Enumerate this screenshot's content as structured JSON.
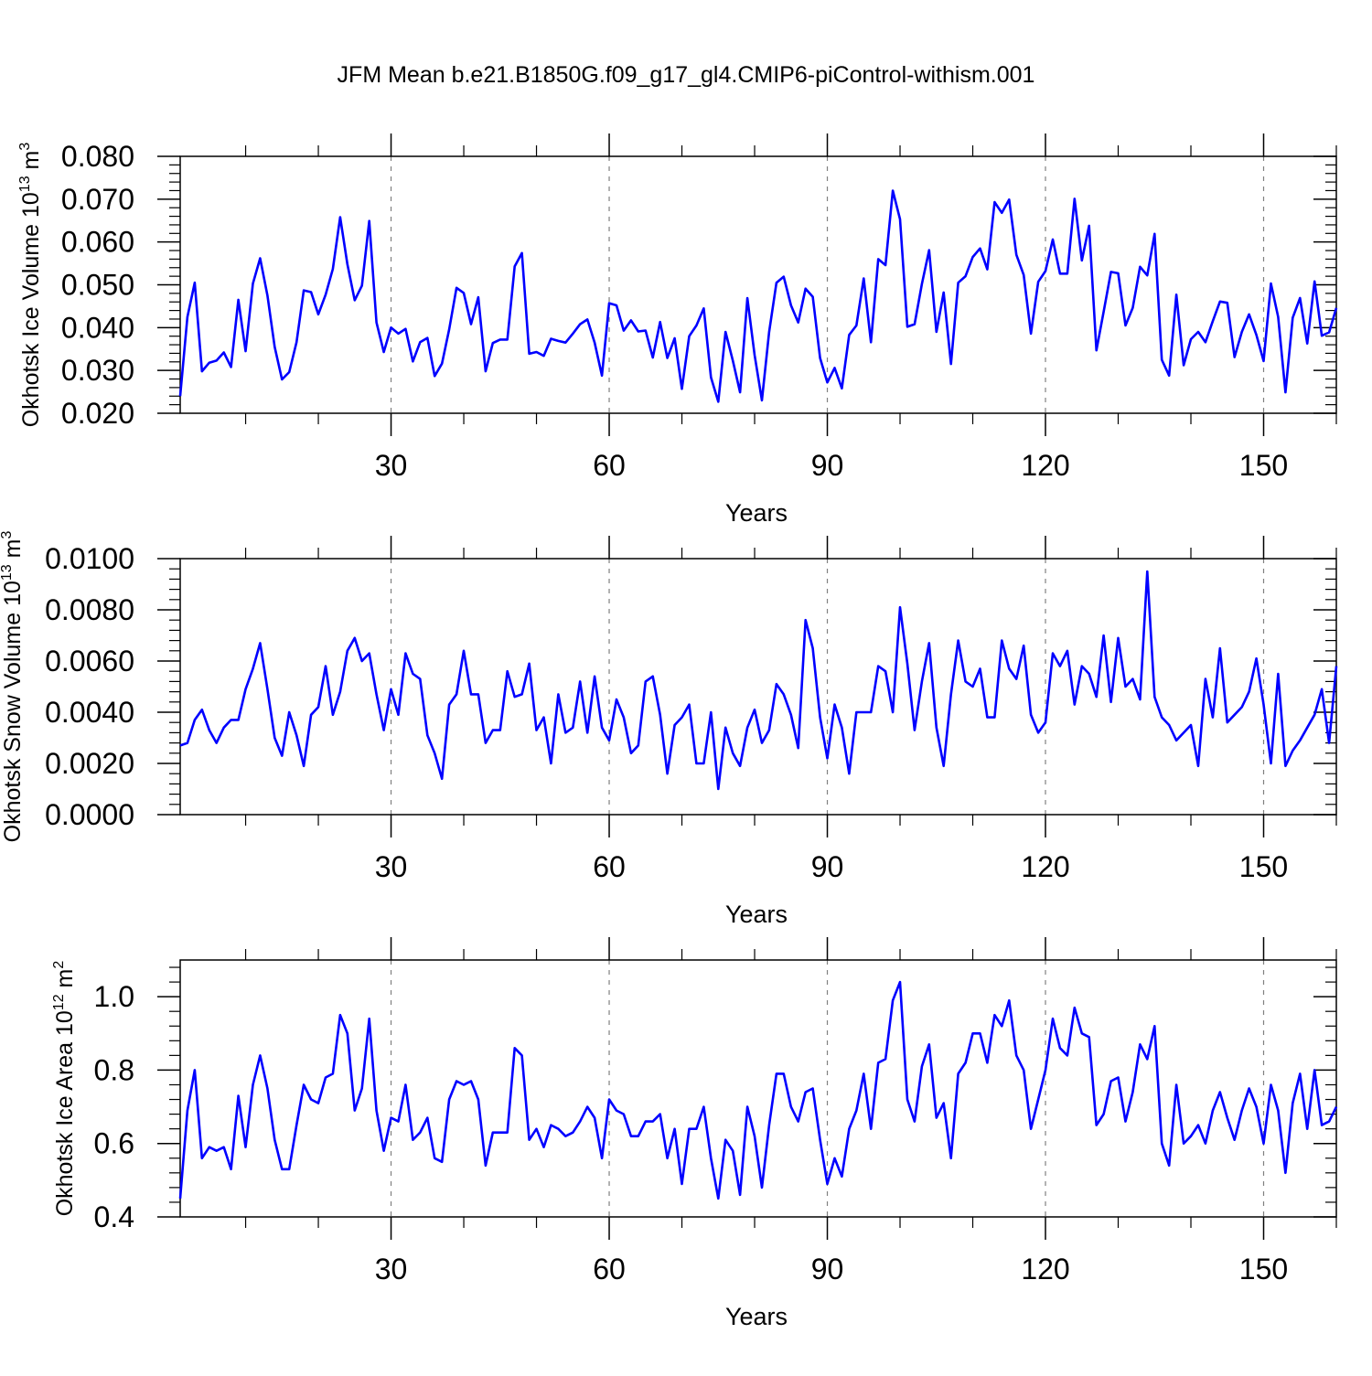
{
  "title": "JFM Mean b.e21.B1850G.f09_g17_gl4.CMIP6-piControl-withism.001",
  "line_color": "#0000ff",
  "grid_color": "#808080",
  "chart_data": [
    {
      "type": "line",
      "title": "",
      "xlabel": "Years",
      "ylabel": "Okhotsk Ice Volume 10",
      "ylabel_exp": "13",
      "ylabel_unit": "m",
      "ylabel_unit_exp": "3",
      "xlim": [
        1,
        160
      ],
      "ylim": [
        0.02,
        0.08
      ],
      "xticks": [
        30,
        60,
        90,
        120,
        150
      ],
      "xtick_labels": [
        "30",
        "60",
        "90",
        "120",
        "150"
      ],
      "yticks": [
        0.02,
        0.03,
        0.04,
        0.05,
        0.06,
        0.07,
        0.08
      ],
      "ytick_labels": [
        "0.020",
        "0.030",
        "0.040",
        "0.050",
        "0.060",
        "0.070",
        "0.080"
      ],
      "grid": "vertical dashed at x ticks",
      "series": [
        {
          "values": [
            0.024,
            0.0425,
            0.0505,
            0.0298,
            0.0318,
            0.0323,
            0.0342,
            0.0308,
            0.0465,
            0.0345,
            0.0503,
            0.0562,
            0.0475,
            0.0355,
            0.0279,
            0.0296,
            0.0366,
            0.0487,
            0.0483,
            0.0431,
            0.0477,
            0.0537,
            0.0658,
            0.0548,
            0.0464,
            0.0498,
            0.0649,
            0.0412,
            0.0343,
            0.04,
            0.0386,
            0.0397,
            0.0321,
            0.0366,
            0.0376,
            0.0287,
            0.0316,
            0.0396,
            0.0493,
            0.0481,
            0.0408,
            0.0471,
            0.0298,
            0.0364,
            0.0372,
            0.0372,
            0.0543,
            0.0574,
            0.0339,
            0.0343,
            0.0334,
            0.0374,
            0.0369,
            0.0365,
            0.0386,
            0.0408,
            0.0419,
            0.0365,
            0.0288,
            0.0457,
            0.0452,
            0.0393,
            0.0417,
            0.0391,
            0.0393,
            0.033,
            0.0413,
            0.0329,
            0.0375,
            0.0257,
            0.038,
            0.0405,
            0.0445,
            0.0284,
            0.0227,
            0.039,
            0.0323,
            0.0249,
            0.0469,
            0.0336,
            0.023,
            0.039,
            0.0505,
            0.0519,
            0.0452,
            0.0412,
            0.0491,
            0.0472,
            0.0329,
            0.0272,
            0.0306,
            0.0258,
            0.0383,
            0.0405,
            0.0515,
            0.0366,
            0.056,
            0.0546,
            0.072,
            0.0653,
            0.0402,
            0.0408,
            0.0502,
            0.0581,
            0.039,
            0.0482,
            0.0315,
            0.0505,
            0.052,
            0.0565,
            0.0585,
            0.0536,
            0.0693,
            0.0668,
            0.0699,
            0.057,
            0.0523,
            0.0386,
            0.0507,
            0.0532,
            0.0606,
            0.0526,
            0.0526,
            0.0701,
            0.0557,
            0.0638,
            0.0347,
            0.0437,
            0.053,
            0.0527,
            0.0405,
            0.0446,
            0.0542,
            0.0522,
            0.0619,
            0.0325,
            0.0288,
            0.0477,
            0.0312,
            0.0373,
            0.039,
            0.0366,
            0.0415,
            0.0461,
            0.0458,
            0.0331,
            0.039,
            0.0431,
            0.0383,
            0.0322,
            0.0503,
            0.0425,
            0.0249,
            0.0423,
            0.0469,
            0.0363,
            0.0508,
            0.0381,
            0.0389,
            0.0446
          ]
        }
      ]
    },
    {
      "type": "line",
      "title": "",
      "xlabel": "Years",
      "ylabel": "Okhotsk Snow Volume 10",
      "ylabel_exp": "13",
      "ylabel_unit": "m",
      "ylabel_unit_exp": "3",
      "xlim": [
        1,
        160
      ],
      "ylim": [
        0.0,
        0.01
      ],
      "xticks": [
        30,
        60,
        90,
        120,
        150
      ],
      "xtick_labels": [
        "30",
        "60",
        "90",
        "120",
        "150"
      ],
      "yticks": [
        0.0,
        0.002,
        0.004,
        0.006,
        0.008,
        0.01
      ],
      "ytick_labels": [
        "0.0000",
        "0.0020",
        "0.0040",
        "0.0060",
        "0.0080",
        "0.0100"
      ],
      "grid": "vertical dashed at x ticks",
      "series": [
        {
          "values": [
            0.0027,
            0.0028,
            0.0037,
            0.0041,
            0.0033,
            0.0028,
            0.0034,
            0.0037,
            0.0037,
            0.0049,
            0.0057,
            0.0067,
            0.0049,
            0.003,
            0.0023,
            0.004,
            0.0031,
            0.0019,
            0.0039,
            0.0042,
            0.0058,
            0.0039,
            0.0048,
            0.0064,
            0.0069,
            0.006,
            0.0063,
            0.0047,
            0.0033,
            0.0049,
            0.0039,
            0.0063,
            0.0055,
            0.0053,
            0.0031,
            0.0024,
            0.0014,
            0.0043,
            0.0047,
            0.0064,
            0.0047,
            0.0047,
            0.0028,
            0.0033,
            0.0033,
            0.0056,
            0.0046,
            0.0047,
            0.0059,
            0.0033,
            0.0038,
            0.002,
            0.0047,
            0.0032,
            0.0034,
            0.0052,
            0.0032,
            0.0054,
            0.0034,
            0.0029,
            0.0045,
            0.0038,
            0.0024,
            0.0027,
            0.0052,
            0.0054,
            0.0039,
            0.0016,
            0.0035,
            0.0038,
            0.0043,
            0.002,
            0.002,
            0.004,
            0.001,
            0.0034,
            0.0024,
            0.0019,
            0.0034,
            0.0041,
            0.0028,
            0.0033,
            0.0051,
            0.0047,
            0.0039,
            0.0026,
            0.0076,
            0.0065,
            0.0038,
            0.0022,
            0.0043,
            0.0034,
            0.0016,
            0.004,
            0.004,
            0.004,
            0.0058,
            0.0056,
            0.004,
            0.0081,
            0.0059,
            0.0033,
            0.0052,
            0.0067,
            0.0034,
            0.0019,
            0.0047,
            0.0068,
            0.0052,
            0.005,
            0.0057,
            0.0038,
            0.0038,
            0.0068,
            0.0057,
            0.0053,
            0.0066,
            0.0039,
            0.0032,
            0.0036,
            0.0063,
            0.0058,
            0.0064,
            0.0043,
            0.0058,
            0.0055,
            0.0046,
            0.007,
            0.0044,
            0.0069,
            0.005,
            0.0053,
            0.0045,
            0.0095,
            0.0046,
            0.0038,
            0.0035,
            0.0029,
            0.0032,
            0.0035,
            0.0019,
            0.0053,
            0.0038,
            0.0065,
            0.0036,
            0.0039,
            0.0042,
            0.0048,
            0.0061,
            0.0043,
            0.002,
            0.0055,
            0.0019,
            0.0025,
            0.0029,
            0.0034,
            0.0039,
            0.0049,
            0.0028,
            0.0058
          ]
        }
      ]
    },
    {
      "type": "line",
      "title": "",
      "xlabel": "Years",
      "ylabel": "Okhotsk Ice Area 10",
      "ylabel_exp": "12",
      "ylabel_unit": "m",
      "ylabel_unit_exp": "2",
      "xlim": [
        1,
        160
      ],
      "ylim": [
        0.4,
        1.1
      ],
      "xticks": [
        30,
        60,
        90,
        120,
        150
      ],
      "xtick_labels": [
        "30",
        "60",
        "90",
        "120",
        "150"
      ],
      "yticks": [
        0.4,
        0.6,
        0.8,
        1.0
      ],
      "ytick_labels": [
        "0.4",
        "0.6",
        "0.8",
        "1.0"
      ],
      "grid": "vertical dashed at x ticks",
      "series": [
        {
          "values": [
            0.45,
            0.69,
            0.8,
            0.56,
            0.59,
            0.58,
            0.59,
            0.53,
            0.73,
            0.59,
            0.76,
            0.84,
            0.75,
            0.61,
            0.53,
            0.53,
            0.65,
            0.76,
            0.72,
            0.71,
            0.78,
            0.79,
            0.95,
            0.9,
            0.69,
            0.75,
            0.94,
            0.69,
            0.58,
            0.67,
            0.66,
            0.76,
            0.61,
            0.63,
            0.67,
            0.56,
            0.55,
            0.72,
            0.77,
            0.76,
            0.77,
            0.72,
            0.54,
            0.63,
            0.63,
            0.63,
            0.86,
            0.84,
            0.61,
            0.64,
            0.59,
            0.65,
            0.64,
            0.62,
            0.63,
            0.66,
            0.7,
            0.67,
            0.56,
            0.72,
            0.69,
            0.68,
            0.62,
            0.62,
            0.66,
            0.66,
            0.68,
            0.56,
            0.64,
            0.49,
            0.64,
            0.64,
            0.7,
            0.56,
            0.45,
            0.61,
            0.58,
            0.46,
            0.7,
            0.62,
            0.48,
            0.65,
            0.79,
            0.79,
            0.7,
            0.66,
            0.74,
            0.75,
            0.61,
            0.49,
            0.56,
            0.51,
            0.64,
            0.69,
            0.79,
            0.64,
            0.82,
            0.83,
            0.99,
            1.04,
            0.72,
            0.66,
            0.81,
            0.87,
            0.67,
            0.71,
            0.56,
            0.79,
            0.82,
            0.9,
            0.9,
            0.82,
            0.95,
            0.92,
            0.99,
            0.84,
            0.8,
            0.64,
            0.72,
            0.8,
            0.94,
            0.86,
            0.84,
            0.97,
            0.9,
            0.89,
            0.65,
            0.68,
            0.77,
            0.78,
            0.66,
            0.74,
            0.87,
            0.83,
            0.92,
            0.6,
            0.54,
            0.76,
            0.6,
            0.62,
            0.65,
            0.6,
            0.69,
            0.74,
            0.67,
            0.61,
            0.69,
            0.75,
            0.7,
            0.6,
            0.76,
            0.69,
            0.52,
            0.71,
            0.79,
            0.64,
            0.8,
            0.65,
            0.66,
            0.7
          ]
        }
      ]
    }
  ]
}
